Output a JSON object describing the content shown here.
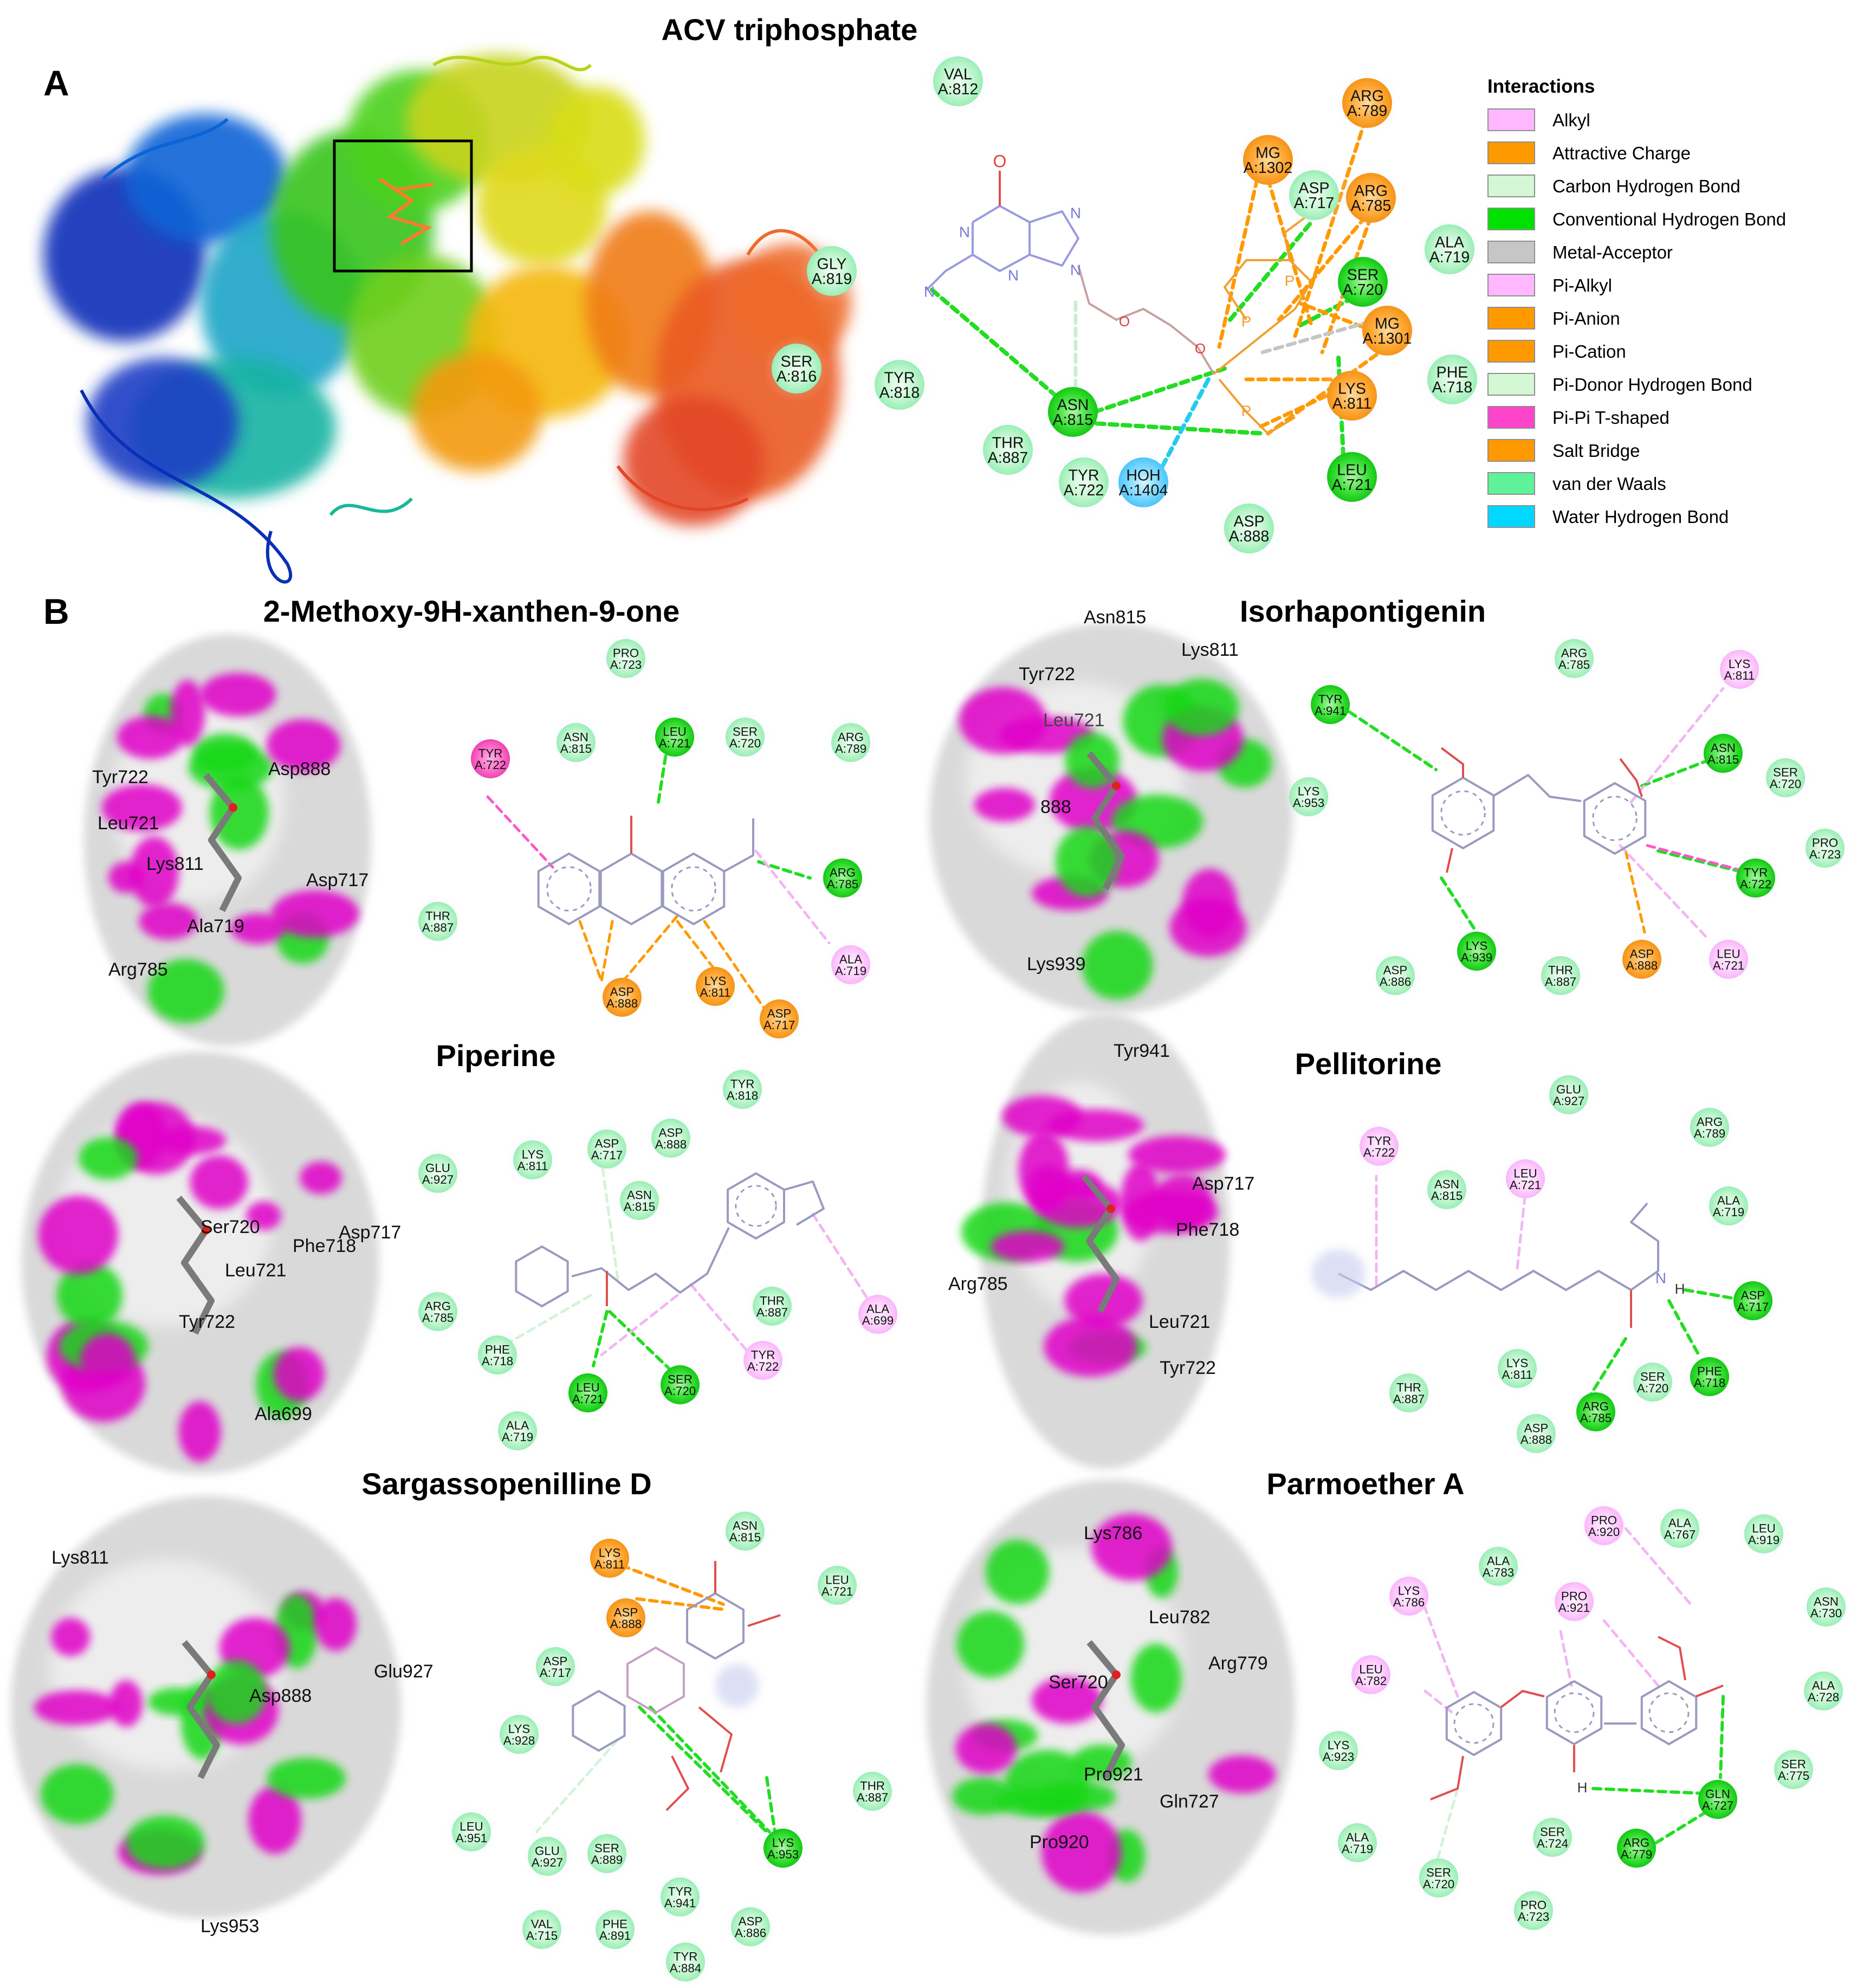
{
  "panel_a": {
    "label": "A",
    "title": "ACV triphosphate",
    "residues": [
      "VAL A:812",
      "ARG A:789",
      "MG A:1302",
      "ASP A:717",
      "ARG A:785",
      "ALA A:719",
      "SER A:720",
      "GLY A:819",
      "MG A:1301",
      "SER A:816",
      "TYR A:818",
      "PHE A:718",
      "LYS A:811",
      "ASN A:815",
      "THR A:887",
      "TYR A:722",
      "HOH A:1404",
      "LEU A:721",
      "ASP A:888"
    ],
    "atoms": [
      "O",
      "N",
      "N",
      "N",
      "N",
      "N",
      "O",
      "O",
      "P",
      "P",
      "P"
    ]
  },
  "legend": {
    "title": "Interactions",
    "items": [
      {
        "label": "Alkyl",
        "color": "#ffb8ff"
      },
      {
        "label": "Attractive Charge",
        "color": "#ff9900"
      },
      {
        "label": "Carbon Hydrogen Bond",
        "color": "#d4f7d4"
      },
      {
        "label": "Conventional Hydrogen Bond",
        "color": "#00e100"
      },
      {
        "label": "Metal-Acceptor",
        "color": "#c6c6c6"
      },
      {
        "label": "Pi-Alkyl",
        "color": "#ffb8ff"
      },
      {
        "label": "Pi-Anion",
        "color": "#ff9900"
      },
      {
        "label": "Pi-Cation",
        "color": "#ff9900"
      },
      {
        "label": "Pi-Donor Hydrogen Bond",
        "color": "#d4f7d4"
      },
      {
        "label": "Pi-Pi T-shaped",
        "color": "#ff44cc"
      },
      {
        "label": "Salt Bridge",
        "color": "#ff9900"
      },
      {
        "label": "van der Waals",
        "color": "#5ef29a"
      },
      {
        "label": "Water Hydrogen Bond",
        "color": "#00d8ff"
      }
    ]
  },
  "panel_b": {
    "label": "B",
    "ligands": [
      {
        "title": "2-Methoxy-9H-xanthen-9-one",
        "surface_labels": [
          "Tyr722",
          "Asp888",
          "Leu721",
          "Lys811",
          "Asp717",
          "Ala719",
          "Arg785"
        ],
        "residues": [
          "PRO A:723",
          "TYR A:722",
          "ASN A:815",
          "LEU A:721",
          "SER A:720",
          "ARG A:789",
          "ARG A:785",
          "THR A:887",
          "ALA A:719",
          "ASP A:888",
          "LYS A:811",
          "ASP A:717"
        ]
      },
      {
        "title": "Isorhapontigenin",
        "surface_labels": [
          "Asn815",
          "Lys811",
          "Tyr722",
          "Leu721",
          "888",
          "Lys939",
          "Tyr941"
        ],
        "residues": [
          "ARG A:785",
          "LYS A:811",
          "TYR A:941",
          "ASN A:815",
          "SER A:720",
          "LYS A:953",
          "PRO A:723",
          "TYR A:722",
          "LYS A:939",
          "THR A:887",
          "ASP A:888",
          "LEU A:721",
          "ASP A:886"
        ]
      },
      {
        "title": "Piperine",
        "surface_labels": [
          "Ser720",
          "Asp717",
          "Phe718",
          "Leu721",
          "Tyr722",
          "Ala699"
        ],
        "residues": [
          "TYR A:818",
          "ASP A:717",
          "ASP A:888",
          "LYS A:811",
          "ASN A:815",
          "GLU A:927",
          "THR A:887",
          "ARG A:785",
          "ALA A:699",
          "PHE A:718",
          "TYR A:722",
          "SER A:720",
          "LEU A:721",
          "ALA A:719"
        ]
      },
      {
        "title": "Pellitorine",
        "surface_labels": [
          "Asp717",
          "Phe718",
          "Arg785",
          "Leu721",
          "Tyr722"
        ],
        "residues": [
          "GLU A:927",
          "TYR A:722",
          "ARG A:789",
          "ASN A:815",
          "LEU A:721",
          "ALA A:719",
          "ASP A:717",
          "LYS A:811",
          "THR A:887",
          "SER A:720",
          "PHE A:718",
          "ARG A:785",
          "ASP A:888"
        ]
      },
      {
        "title": "Sargassopenilline D",
        "surface_labels": [
          "Lys811",
          "Glu927",
          "Asp888",
          "Lys953"
        ],
        "residues": [
          "LYS A:811",
          "ASN A:815",
          "ASP A:888",
          "LEU A:721",
          "ASP A:717",
          "LYS A:928",
          "THR A:887",
          "LEU A:951",
          "GLU A:927",
          "SER A:889",
          "LYS A:953",
          "TYR A:941",
          "ASP A:886",
          "VAL A:715",
          "PHE A:891",
          "TYR A:884"
        ]
      },
      {
        "title": "Parmoether A",
        "surface_labels": [
          "Lys786",
          "Leu782",
          "Arg779",
          "Ser720",
          "Pro921",
          "Gln727",
          "Pro920"
        ],
        "residues": [
          "PRO A:920",
          "ALA A:767",
          "LEU A:919",
          "LYS A:786",
          "ALA A:783",
          "PRO A:921",
          "ASN A:730",
          "LEU A:782",
          "ALA A:728",
          "LYS A:923",
          "SER A:775",
          "GLN A:727",
          "ALA A:719",
          "SER A:724",
          "ARG A:779",
          "SER A:720",
          "PRO A:723"
        ]
      }
    ],
    "atoms": [
      "O",
      "O",
      "H",
      "H",
      "N"
    ]
  }
}
